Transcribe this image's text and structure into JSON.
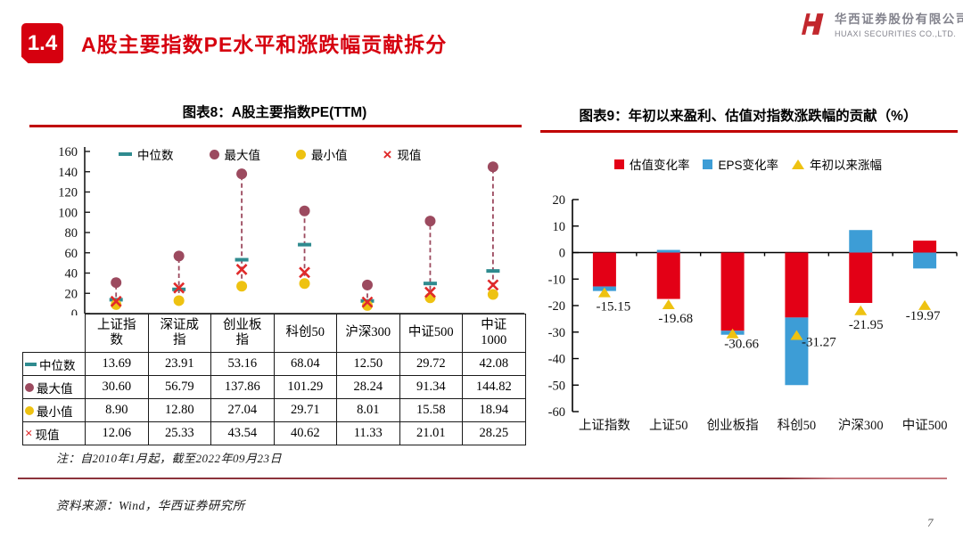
{
  "header": {
    "section_number": "1.4",
    "title": "A股主要指数PE水平和涨跌幅贡献拆分",
    "logo": {
      "company_cn": "华西证券股份有限公司",
      "company_en": "HUAXI SECURITIES CO.,LTD.",
      "mark_icon": "huaxi-h-monogram-icon",
      "brand_red": "#c2272d",
      "text_gray": "#83838d"
    }
  },
  "left_panel": {
    "title": "图表8：A股主要指数PE(TTM)"
  },
  "right_panel": {
    "title": "图表9：年初以来盈利、估值对指数涨跌幅的贡献（%）"
  },
  "pe_table": {
    "rows": [
      {
        "icon": "teal-dash-icon",
        "label": "中位数",
        "values": [
          "13.69",
          "23.91",
          "53.16",
          "68.04",
          "12.50",
          "29.72",
          "42.08"
        ]
      },
      {
        "icon": "maroon-circle-icon",
        "label": "最大值",
        "values": [
          "30.60",
          "56.79",
          "137.86",
          "101.29",
          "28.24",
          "91.34",
          "144.82"
        ]
      },
      {
        "icon": "gold-circle-icon",
        "label": "最小值",
        "values": [
          "8.90",
          "12.80",
          "27.04",
          "29.71",
          "8.01",
          "15.58",
          "18.94"
        ]
      },
      {
        "icon": "red-x-icon",
        "label": "现值",
        "values": [
          "12.06",
          "25.33",
          "43.54",
          "40.62",
          "11.33",
          "21.01",
          "28.25"
        ]
      }
    ]
  },
  "footer": {
    "note": "注：自2010年1月起，截至2022年09月23日",
    "source": "资料来源：Wind，华西证券研究所",
    "page_number": "7"
  },
  "accent_colors": {
    "title_red": "#d6000f",
    "rule_red": "#c00000",
    "separator_dark": "#8c333c",
    "separator_light": "#c5787e"
  },
  "chart_data": [
    {
      "id": "pe-range-chart",
      "type": "scatter",
      "title": "图表8：A股主要指数PE(TTM)",
      "categories": [
        "上证指数",
        "深证成指",
        "创业板指",
        "科创50",
        "沪深300",
        "中证500",
        "中证1000"
      ],
      "series": [
        {
          "name": "中位数",
          "marker": "dash",
          "color": "#2f8b8f",
          "values": [
            13.69,
            23.91,
            53.16,
            68.04,
            12.5,
            29.72,
            42.08
          ]
        },
        {
          "name": "最大值",
          "marker": "circle",
          "color": "#9c4a5f",
          "values": [
            30.6,
            56.79,
            137.86,
            101.29,
            28.24,
            91.34,
            144.82
          ]
        },
        {
          "name": "最小值",
          "marker": "circle",
          "color": "#eec211",
          "values": [
            8.9,
            12.8,
            27.04,
            29.71,
            8.01,
            15.58,
            18.94
          ]
        },
        {
          "name": "现值",
          "marker": "x",
          "color": "#e02a2a",
          "values": [
            12.06,
            25.33,
            43.54,
            40.62,
            11.33,
            21.01,
            28.25
          ]
        }
      ],
      "connector": {
        "from": "最小值",
        "to": "最大值",
        "style": "dashed",
        "color": "#9c4a5f"
      },
      "ylim": [
        0,
        160
      ],
      "ytick_step": 20,
      "grid": false,
      "legend_position": "top"
    },
    {
      "id": "contribution-chart",
      "type": "bar",
      "stacked": true,
      "title": "图表9：年初以来盈利、估值对指数涨跌幅的贡献（%）",
      "categories": [
        "上证指数",
        "上证50",
        "创业板指",
        "科创50",
        "沪深300",
        "中证500"
      ],
      "series": [
        {
          "name": "估值变化率",
          "role": "bar",
          "color": "#e30016",
          "values": [
            -12.8,
            -17.5,
            -29.5,
            -24.5,
            -19,
            4.5
          ]
        },
        {
          "name": "EPS变化率",
          "role": "bar",
          "color": "#3d9dd6",
          "values": [
            -1.7,
            1,
            -1.5,
            -25.5,
            8.5,
            -6
          ]
        },
        {
          "name": "年初以来涨幅",
          "role": "triangle",
          "color": "#eec211",
          "values": [
            -15.15,
            -19.68,
            -30.66,
            -31.27,
            -21.95,
            -19.97
          ]
        }
      ],
      "point_labels": [
        "-15.15",
        "-19.68",
        "-30.66",
        "-31.27",
        "-21.95",
        "-19.97"
      ],
      "ylim": [
        -60,
        20
      ],
      "ytick_step": 10,
      "grid": false,
      "legend_position": "top"
    }
  ]
}
